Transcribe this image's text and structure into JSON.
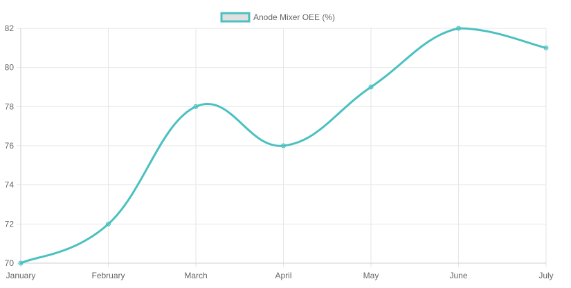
{
  "chart_data": {
    "type": "line",
    "categories": [
      "January",
      "February",
      "March",
      "April",
      "May",
      "June",
      "July"
    ],
    "series": [
      {
        "name": "Anode Mixer OEE (%)",
        "values": [
          70,
          72,
          78,
          76,
          79,
          82,
          81
        ],
        "color": "#4bc0c0",
        "legend_fill": "#e0e0e0"
      }
    ],
    "y_ticks": [
      70,
      72,
      74,
      76,
      78,
      80,
      82
    ],
    "ylim": [
      70,
      82
    ],
    "grid": true,
    "legend_position": "top",
    "grid_color": "#e6e6e6",
    "tick_color": "#666666"
  }
}
